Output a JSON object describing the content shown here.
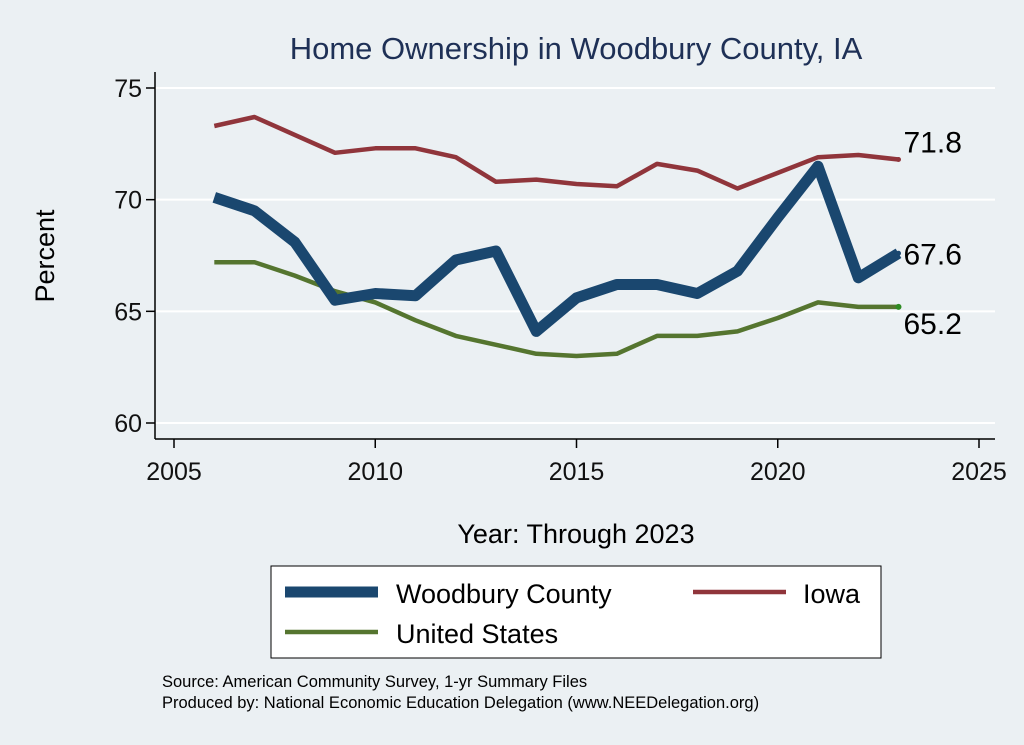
{
  "chart_data": {
    "type": "line",
    "title": "Home Ownership in Woodbury County, IA",
    "xlabel": "Year: Through 2023",
    "ylabel": "Percent",
    "xlim": [
      2005,
      2025
    ],
    "ylim": [
      60,
      75
    ],
    "x_ticks": [
      2005,
      2010,
      2015,
      2020,
      2025
    ],
    "y_ticks": [
      60,
      65,
      70,
      75
    ],
    "grid": true,
    "legend_position": "bottom",
    "x": [
      2006,
      2007,
      2008,
      2009,
      2010,
      2011,
      2012,
      2013,
      2014,
      2015,
      2016,
      2017,
      2018,
      2019,
      2020,
      2021,
      2022,
      2023
    ],
    "series": [
      {
        "name": "Woodbury County",
        "color": "#1a476f",
        "values": [
          70.1,
          69.5,
          68.1,
          65.5,
          65.8,
          65.7,
          67.3,
          67.7,
          64.1,
          65.6,
          66.2,
          66.2,
          65.8,
          66.8,
          69.2,
          71.5,
          66.5,
          67.6
        ],
        "end_label": "67.6"
      },
      {
        "name": "Iowa",
        "color": "#90353b",
        "values": [
          73.3,
          73.7,
          72.9,
          72.1,
          72.3,
          72.3,
          71.9,
          70.8,
          70.9,
          70.7,
          70.6,
          71.6,
          71.3,
          70.5,
          71.2,
          71.9,
          72.0,
          71.8
        ],
        "end_label": "71.8"
      },
      {
        "name": "United States",
        "color": "#55752f",
        "values": [
          67.2,
          67.2,
          66.6,
          65.9,
          65.4,
          64.6,
          63.9,
          63.5,
          63.1,
          63.0,
          63.1,
          63.9,
          63.9,
          64.1,
          64.7,
          65.4,
          65.2,
          65.2
        ],
        "end_label": "65.2"
      }
    ]
  },
  "source_lines": [
    "Source: American Community Survey, 1-yr Summary Files",
    "Produced by: National Economic Education Delegation (www.NEEDelegation.org)"
  ]
}
